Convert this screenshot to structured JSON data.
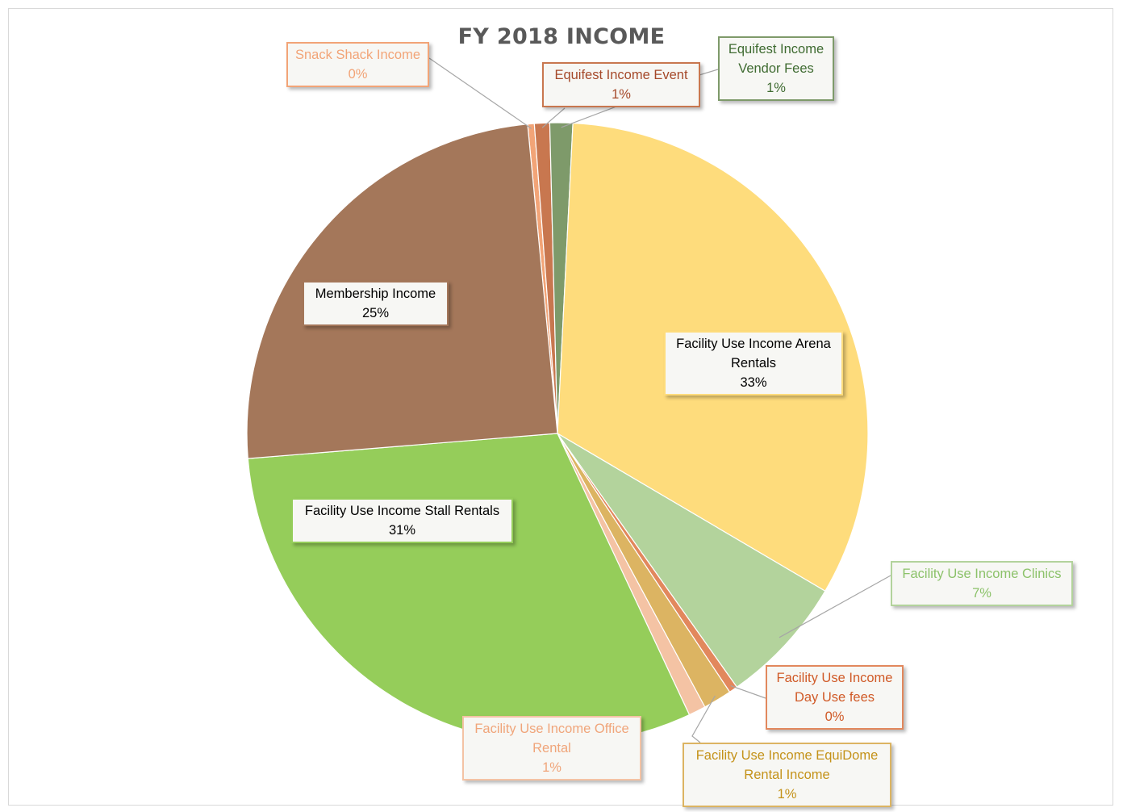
{
  "chart_data": {
    "type": "pie",
    "title": "FY 2018 INCOME",
    "slices": [
      {
        "key": "snack",
        "name": "Snack Shack Income",
        "line1": "Snack Shack Income",
        "line2": "",
        "pct": "0%",
        "value": 0.35,
        "color": "#f2a477",
        "text_color": "#f2a477"
      },
      {
        "key": "event",
        "name": "Equifest Income Event",
        "line1": "Equifest Income Event",
        "line2": "",
        "pct": "1%",
        "value": 0.8,
        "color": "#c8774f",
        "text_color": "#a5492a"
      },
      {
        "key": "vendor",
        "name": "Equifest Income Vendor Fees",
        "line1": "Equifest Income",
        "line2": "Vendor Fees",
        "pct": "1%",
        "value": 1.2,
        "color": "#7e9a6a",
        "text_color": "#3f6b31"
      },
      {
        "key": "arena",
        "name": "Facility Use Income Arena Rentals",
        "line1": "Facility Use Income Arena",
        "line2": "Rentals",
        "pct": "33%",
        "value": 33.0,
        "color": "#fedc7c",
        "text_color": "#000000"
      },
      {
        "key": "clinics",
        "name": "Facility Use Income Clinics",
        "line1": "Facility Use Income Clinics",
        "line2": "",
        "pct": "7%",
        "value": 6.8,
        "color": "#b3d39c",
        "text_color": "#8cc26a"
      },
      {
        "key": "dayuse",
        "name": "Facility Use Income Day Use fees",
        "line1": "Facility Use Income",
        "line2": "Day Use fees",
        "pct": "0%",
        "value": 0.45,
        "color": "#e2885d",
        "text_color": "#d05a27"
      },
      {
        "key": "equidome",
        "name": "Facility Use Income EquiDome Rental Income",
        "line1": "Facility Use Income EquiDome",
        "line2": "Rental Income",
        "pct": "1%",
        "value": 1.5,
        "color": "#dcb462",
        "text_color": "#c49219"
      },
      {
        "key": "office",
        "name": "Facility Use Income Office Rental",
        "line1": "Facility Use Income Office",
        "line2": "Rental",
        "pct": "1%",
        "value": 0.9,
        "color": "#f4c3a4",
        "text_color": "#f0a57a"
      },
      {
        "key": "stall",
        "name": "Facility Use Income Stall Rentals",
        "line1": "Facility Use Income Stall Rentals",
        "line2": "",
        "pct": "31%",
        "value": 31.0,
        "color": "#95cd5a",
        "text_color": "#000000"
      },
      {
        "key": "membership",
        "name": "Membership Income",
        "line1": "Membership Income",
        "line2": "",
        "pct": "25%",
        "value": 25.0,
        "color": "#a4775a",
        "text_color": "#000000"
      }
    ]
  }
}
